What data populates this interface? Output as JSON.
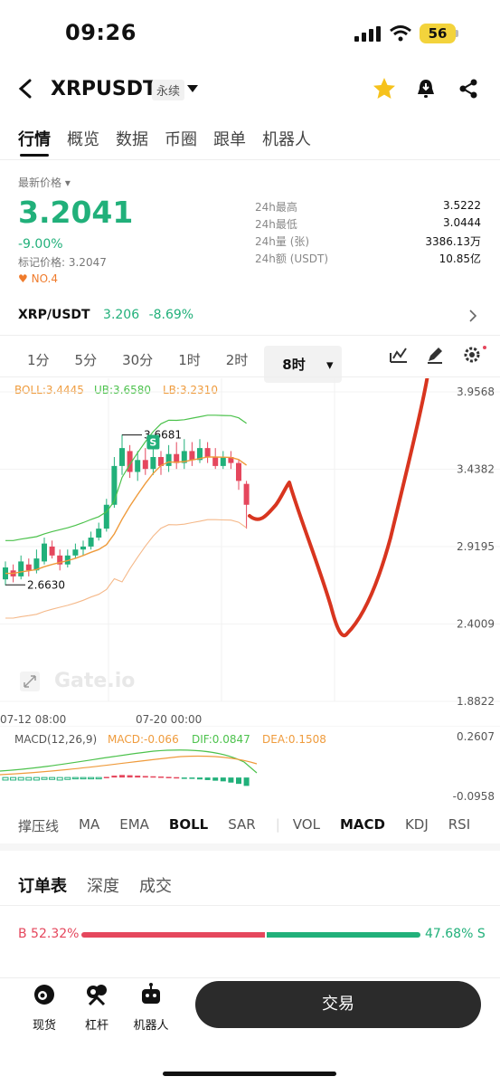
{
  "status_bar": {
    "time": "09:26",
    "battery": "56"
  },
  "header": {
    "symbol": "XRPUSDT",
    "contract_type": "永续",
    "icons": [
      "back-icon",
      "dropdown-icon",
      "star-icon",
      "bell-icon",
      "share-icon"
    ]
  },
  "tabs": [
    "行情",
    "概览",
    "数据",
    "币圈",
    "跟单",
    "机器人"
  ],
  "price": {
    "label": "最新价格",
    "last": "3.2041",
    "change": "-9.00%",
    "mark": "标记价格: 3.2047",
    "rank": "NO.4"
  },
  "stats": [
    {
      "k": "24h最高",
      "v": "3.5222"
    },
    {
      "k": "24h最低",
      "v": "3.0444"
    },
    {
      "k": "24h量 (张)",
      "v": "3386.13万"
    },
    {
      "k": "24h额 (USDT)",
      "v": "10.85亿"
    }
  ],
  "spot": {
    "name": "XRP/USDT",
    "price": "3.206",
    "change": "-8.69%"
  },
  "intervals": [
    "1分",
    "5分",
    "30分",
    "1时",
    "2时",
    "8时"
  ],
  "selected_interval": "8时",
  "boll": {
    "boll": "BOLL:3.4445",
    "ub": "UB:3.6580",
    "lb": "LB:3.2310"
  },
  "macd": {
    "title": "MACD(12,26,9)",
    "macd": "MACD:-0.066",
    "dif": "DIF:0.0847",
    "dea": "DEA:0.1508"
  },
  "colors": {
    "green": "#21b07a",
    "red": "#e5475d",
    "orange": "#ef9b3c",
    "boll_green": "#4cc24c",
    "drawing": "#d8351f"
  },
  "chart_data": {
    "type": "candlestick",
    "x_labels": [
      "07-12 08:00",
      "07-20 00:00"
    ],
    "y_ticks": [
      "3.9568",
      "3.4382",
      "2.9195",
      "2.4009",
      "1.8822"
    ],
    "macd_ticks": [
      "0.2607",
      "-0.0958"
    ],
    "annotations": {
      "high": "3.6681",
      "low": "2.6630",
      "marker": "S"
    },
    "candles": [
      {
        "o": 2.7,
        "c": 2.78,
        "h": 2.82,
        "l": 2.66
      },
      {
        "o": 2.76,
        "c": 2.72,
        "h": 2.8,
        "l": 2.68
      },
      {
        "o": 2.72,
        "c": 2.82,
        "h": 2.86,
        "l": 2.7
      },
      {
        "o": 2.8,
        "c": 2.76,
        "h": 2.84,
        "l": 2.72
      },
      {
        "o": 2.76,
        "c": 2.84,
        "h": 2.9,
        "l": 2.74
      },
      {
        "o": 2.82,
        "c": 2.94,
        "h": 2.98,
        "l": 2.8
      },
      {
        "o": 2.92,
        "c": 2.86,
        "h": 2.96,
        "l": 2.84
      },
      {
        "o": 2.86,
        "c": 2.8,
        "h": 2.9,
        "l": 2.76
      },
      {
        "o": 2.8,
        "c": 2.86,
        "h": 2.9,
        "l": 2.78
      },
      {
        "o": 2.86,
        "c": 2.9,
        "h": 2.94,
        "l": 2.84
      },
      {
        "o": 2.9,
        "c": 2.92,
        "h": 2.96,
        "l": 2.86
      },
      {
        "o": 2.92,
        "c": 2.98,
        "h": 3.02,
        "l": 2.9
      },
      {
        "o": 2.98,
        "c": 3.04,
        "h": 3.08,
        "l": 2.96
      },
      {
        "o": 3.04,
        "c": 3.2,
        "h": 3.24,
        "l": 3.02
      },
      {
        "o": 3.2,
        "c": 3.46,
        "h": 3.52,
        "l": 3.18
      },
      {
        "o": 3.46,
        "c": 3.58,
        "h": 3.67,
        "l": 3.4
      },
      {
        "o": 3.56,
        "c": 3.42,
        "h": 3.6,
        "l": 3.38
      },
      {
        "o": 3.42,
        "c": 3.5,
        "h": 3.56,
        "l": 3.36
      },
      {
        "o": 3.5,
        "c": 3.44,
        "h": 3.58,
        "l": 3.4
      },
      {
        "o": 3.44,
        "c": 3.52,
        "h": 3.6,
        "l": 3.4
      },
      {
        "o": 3.52,
        "c": 3.46,
        "h": 3.56,
        "l": 3.4
      },
      {
        "o": 3.46,
        "c": 3.54,
        "h": 3.6,
        "l": 3.42
      },
      {
        "o": 3.54,
        "c": 3.48,
        "h": 3.62,
        "l": 3.44
      },
      {
        "o": 3.48,
        "c": 3.56,
        "h": 3.64,
        "l": 3.44
      },
      {
        "o": 3.56,
        "c": 3.5,
        "h": 3.62,
        "l": 3.46
      },
      {
        "o": 3.5,
        "c": 3.58,
        "h": 3.64,
        "l": 3.48
      },
      {
        "o": 3.58,
        "c": 3.52,
        "h": 3.62,
        "l": 3.48
      },
      {
        "o": 3.52,
        "c": 3.46,
        "h": 3.58,
        "l": 3.44
      },
      {
        "o": 3.46,
        "c": 3.52,
        "h": 3.56,
        "l": 3.44
      },
      {
        "o": 3.52,
        "c": 3.48,
        "h": 3.56,
        "l": 3.44
      },
      {
        "o": 3.48,
        "c": 3.36,
        "h": 3.5,
        "l": 3.3
      },
      {
        "o": 3.34,
        "c": 3.2,
        "h": 3.36,
        "l": 3.04
      }
    ],
    "macd_hist": [
      -0.02,
      -0.02,
      -0.02,
      -0.02,
      -0.02,
      -0.015,
      -0.015,
      -0.02,
      -0.015,
      -0.01,
      -0.01,
      -0.01,
      -0.005,
      0.005,
      0.015,
      0.02,
      0.018,
      0.015,
      0.012,
      0.01,
      0.008,
      0.005,
      0.003,
      -0.005,
      -0.01,
      -0.015,
      -0.02,
      -0.025,
      -0.03,
      -0.04,
      -0.05,
      -0.066
    ]
  },
  "indicator_tabs": [
    "撑压线",
    "MA",
    "EMA",
    "BOLL",
    "SAR",
    "VOL",
    "MACD",
    "KDJ",
    "RSI"
  ],
  "indicator_selected": [
    "BOLL",
    "MACD"
  ],
  "book_tabs": [
    "订单表",
    "深度",
    "成交"
  ],
  "ratio": {
    "buy": "B 52.32%",
    "sell": "47.68% S"
  },
  "bottom_nav": [
    {
      "label": "现货",
      "icon": "spot-icon"
    },
    {
      "label": "杠杆",
      "icon": "margin-icon"
    },
    {
      "label": "机器人",
      "icon": "robot-icon"
    }
  ],
  "trade_button": "交易",
  "watermark": "Gate.io"
}
